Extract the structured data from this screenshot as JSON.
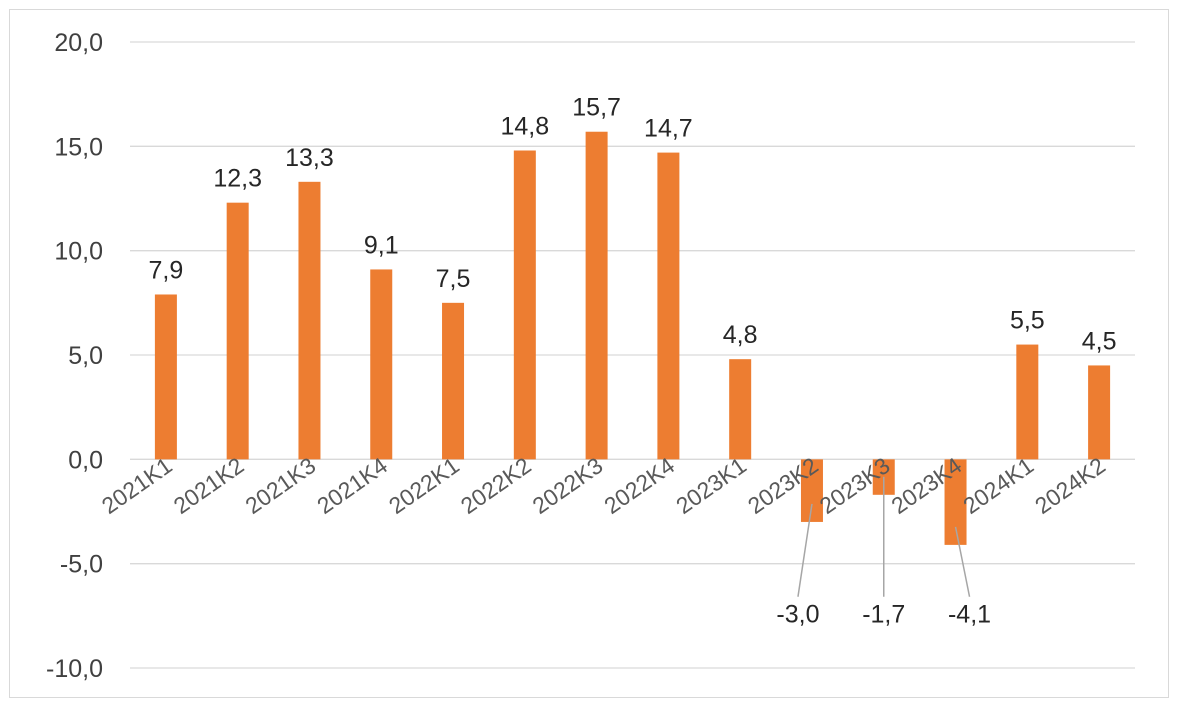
{
  "chart_data": {
    "type": "bar",
    "categories": [
      "2021K1",
      "2021K2",
      "2021K3",
      "2021K4",
      "2022K1",
      "2022K2",
      "2022K3",
      "2022K4",
      "2023K1",
      "2023K2",
      "2023K3",
      "2023K4",
      "2024K1",
      "2024K2"
    ],
    "values": [
      7.9,
      12.3,
      13.3,
      9.1,
      7.5,
      14.8,
      15.7,
      14.7,
      4.8,
      -3.0,
      -1.7,
      -4.1,
      5.5,
      4.5
    ],
    "data_labels": [
      "7,9",
      "12,3",
      "13,3",
      "9,1",
      "7,5",
      "14,8",
      "15,7",
      "14,7",
      "4,8",
      "-3,0",
      "-1,7",
      "-4,1",
      "5,5",
      "4,5"
    ],
    "y_ticks": [
      20,
      15,
      10,
      5,
      0,
      -5,
      -10
    ],
    "y_tick_labels": [
      "20,0",
      "15,0",
      "10,0",
      "5,0",
      "0,0",
      "-5,0",
      "-10,0"
    ],
    "ylim": [
      -10,
      20
    ],
    "grid": true,
    "legend": "none",
    "title": "",
    "xlabel": "",
    "ylabel": "",
    "bar_color": "#ED7D31",
    "grid_color": "#d9d9d9"
  }
}
